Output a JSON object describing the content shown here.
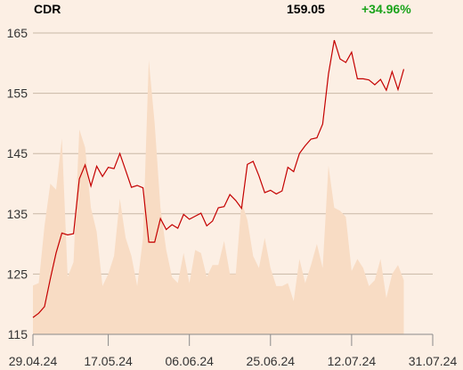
{
  "header": {
    "ticker": "CDR",
    "price": "159.05",
    "change": "+34.96%"
  },
  "colors": {
    "line": "#c40000",
    "volume": "#f8dcc4",
    "grid": "#c9b8a6",
    "change_positive": "#1aa31a",
    "background": "#fcefe4"
  },
  "chart_data": {
    "type": "line",
    "title": "",
    "xlabel": "",
    "ylabel": "",
    "ylim": [
      115,
      165
    ],
    "yticks": [
      165,
      155,
      145,
      135,
      125,
      115
    ],
    "xticks": [
      "29.04.24",
      "17.05.24",
      "06.06.24",
      "25.06.24",
      "12.07.24",
      "31.07.24"
    ],
    "xtick_index": [
      0,
      13,
      27,
      41,
      55,
      69
    ],
    "grid": true,
    "series": [
      {
        "kind": "price",
        "values": [
          117.8,
          118.5,
          119.6,
          124.2,
          128.5,
          131.8,
          131.5,
          131.7,
          140.8,
          143.1,
          139.6,
          142.9,
          141.2,
          142.7,
          142.5,
          145.0,
          142.2,
          139.4,
          139.7,
          139.3,
          130.3,
          130.3,
          134.2,
          132.4,
          133.2,
          132.6,
          134.9,
          134.1,
          134.6,
          135.1,
          133.0,
          133.8,
          136.0,
          136.2,
          138.2,
          137.2,
          135.9,
          143.2,
          143.7,
          141.3,
          138.5,
          138.9,
          138.3,
          138.8,
          142.7,
          142.0,
          145.0,
          146.3,
          147.4,
          147.6,
          149.9,
          158.2,
          163.8,
          160.7,
          160.1,
          161.8,
          157.4,
          157.4,
          157.2,
          156.4,
          157.3,
          155.5,
          158.6,
          155.6,
          159.0
        ]
      },
      {
        "kind": "volume",
        "values": [
          123.1,
          123.5,
          133.0,
          140.0,
          139.0,
          147.5,
          124.5,
          127.0,
          149.0,
          146.0,
          136.0,
          132.0,
          123.0,
          125.0,
          128.0,
          137.5,
          131.0,
          128.0,
          123.0,
          131.0,
          160.5,
          150.0,
          136.0,
          129.0,
          124.5,
          123.5,
          128.5,
          123.5,
          129.0,
          128.5,
          124.5,
          126.5,
          126.5,
          130.5,
          125.0,
          125.0,
          137.0,
          134.0,
          128.0,
          126.0,
          131.0,
          126.0,
          123.0,
          123.0,
          123.5,
          120.5,
          127.5,
          123.5,
          126.5,
          130.0,
          126.0,
          143.0,
          136.0,
          135.5,
          134.5,
          125.5,
          127.5,
          126.0,
          123.0,
          124.0,
          127.5,
          121.0,
          125.0,
          126.5,
          124.0
        ]
      }
    ]
  }
}
